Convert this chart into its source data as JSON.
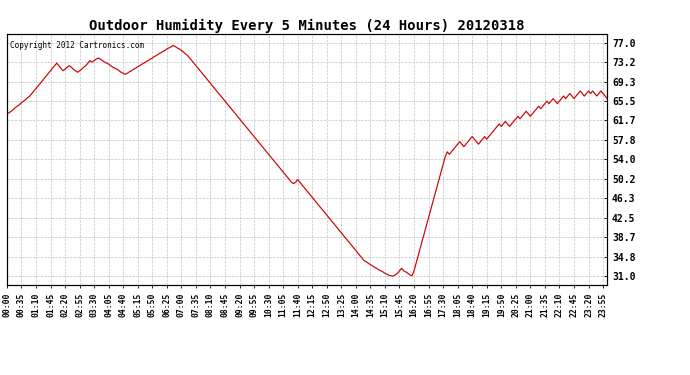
{
  "title": "Outdoor Humidity Every 5 Minutes (24 Hours) 20120318",
  "copyright_text": "Copyright 2012 Cartronics.com",
  "line_color": "#cc0000",
  "bg_color": "#ffffff",
  "grid_color": "#bbbbbb",
  "yticks": [
    31.0,
    34.8,
    38.7,
    42.5,
    46.3,
    50.2,
    54.0,
    57.8,
    61.7,
    65.5,
    69.3,
    73.2,
    77.0
  ],
  "ymin": 29.2,
  "ymax": 78.8,
  "xtick_labels": [
    "00:00",
    "00:35",
    "01:10",
    "01:45",
    "02:20",
    "02:55",
    "03:30",
    "04:05",
    "04:40",
    "05:15",
    "05:50",
    "06:25",
    "07:00",
    "07:35",
    "08:10",
    "08:45",
    "09:20",
    "09:55",
    "10:30",
    "11:05",
    "11:40",
    "12:15",
    "12:50",
    "13:25",
    "14:00",
    "14:35",
    "15:10",
    "15:45",
    "16:20",
    "16:55",
    "17:30",
    "18:05",
    "18:40",
    "19:15",
    "19:50",
    "20:25",
    "21:00",
    "21:35",
    "22:10",
    "22:45",
    "23:20",
    "23:55"
  ],
  "humidity": [
    63.0,
    63.2,
    63.5,
    63.8,
    64.2,
    64.5,
    64.8,
    65.2,
    65.5,
    65.8,
    66.2,
    66.5,
    67.0,
    67.5,
    68.0,
    68.5,
    69.0,
    69.5,
    70.0,
    70.5,
    71.0,
    71.5,
    72.0,
    72.5,
    73.0,
    72.5,
    72.0,
    71.5,
    71.8,
    72.2,
    72.5,
    72.2,
    71.8,
    71.5,
    71.2,
    71.5,
    71.8,
    72.2,
    72.5,
    73.0,
    73.5,
    73.2,
    73.5,
    73.8,
    74.0,
    73.8,
    73.5,
    73.2,
    73.0,
    72.8,
    72.5,
    72.2,
    72.0,
    71.8,
    71.5,
    71.2,
    71.0,
    70.8,
    71.0,
    71.3,
    71.5,
    71.8,
    72.0,
    72.3,
    72.5,
    72.8,
    73.0,
    73.3,
    73.5,
    73.8,
    74.0,
    74.3,
    74.5,
    74.8,
    75.0,
    75.3,
    75.5,
    75.8,
    76.0,
    76.2,
    76.5,
    76.3,
    76.0,
    75.8,
    75.5,
    75.2,
    74.8,
    74.5,
    74.0,
    73.5,
    73.0,
    72.5,
    72.0,
    71.5,
    71.0,
    70.5,
    70.0,
    69.5,
    69.0,
    68.5,
    68.0,
    67.5,
    67.0,
    66.5,
    66.0,
    65.5,
    65.0,
    64.5,
    64.0,
    63.5,
    63.0,
    62.5,
    62.0,
    61.5,
    61.0,
    60.5,
    60.0,
    59.5,
    59.0,
    58.5,
    58.0,
    57.5,
    57.0,
    56.5,
    56.0,
    55.5,
    55.0,
    54.5,
    54.0,
    53.5,
    53.0,
    52.5,
    52.0,
    51.5,
    51.0,
    50.5,
    50.0,
    49.5,
    49.2,
    49.5,
    50.0,
    49.5,
    49.0,
    48.5,
    48.0,
    47.5,
    47.0,
    46.5,
    46.0,
    45.5,
    45.0,
    44.5,
    44.0,
    43.5,
    43.0,
    42.5,
    42.0,
    41.5,
    41.0,
    40.5,
    40.0,
    39.5,
    39.0,
    38.5,
    38.0,
    37.5,
    37.0,
    36.5,
    36.0,
    35.5,
    35.0,
    34.5,
    34.0,
    33.8,
    33.5,
    33.2,
    33.0,
    32.7,
    32.5,
    32.2,
    32.0,
    31.8,
    31.5,
    31.3,
    31.1,
    31.0,
    31.0,
    31.2,
    31.5,
    32.0,
    32.5,
    32.0,
    31.8,
    31.5,
    31.2,
    31.0,
    32.0,
    33.5,
    35.0,
    36.5,
    38.0,
    39.5,
    41.0,
    42.5,
    44.0,
    45.5,
    47.0,
    48.5,
    50.0,
    51.5,
    53.0,
    54.5,
    55.5,
    55.0,
    55.5,
    56.0,
    56.5,
    57.0,
    57.5,
    57.0,
    56.5,
    57.0,
    57.5,
    58.0,
    58.5,
    58.0,
    57.5,
    57.0,
    57.5,
    58.0,
    58.5,
    58.0,
    58.5,
    59.0,
    59.5,
    60.0,
    60.5,
    61.0,
    60.5,
    61.0,
    61.5,
    61.0,
    60.5,
    61.0,
    61.5,
    62.0,
    62.5,
    62.0,
    62.5,
    63.0,
    63.5,
    63.0,
    62.5,
    63.0,
    63.5,
    64.0,
    64.5,
    64.0,
    64.5,
    65.0,
    65.5,
    65.0,
    65.5,
    66.0,
    65.5,
    65.0,
    65.5,
    66.0,
    66.5,
    66.0,
    66.5,
    67.0,
    66.5,
    66.0,
    66.5,
    67.0,
    67.5,
    67.0,
    66.5,
    67.0,
    67.5,
    67.0,
    67.5,
    67.0,
    66.5,
    67.0,
    67.5,
    67.0,
    66.5,
    66.0
  ]
}
